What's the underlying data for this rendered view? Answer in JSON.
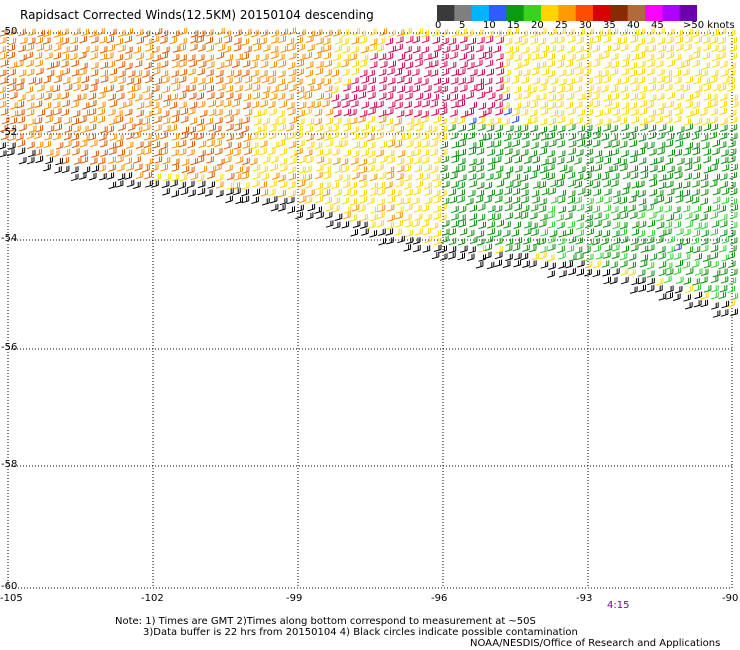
{
  "title": "Rapidsact Corrected Winds(12.5KM) 20150104 descending",
  "legend": {
    "ticks": [
      "0",
      "5",
      "10",
      "15",
      "20",
      "25",
      "30",
      "35",
      "40",
      "45",
      ">50 knots"
    ],
    "colors": [
      "#3a3a3a",
      "#7f7f7f",
      "#00b4ff",
      "#2f5cff",
      "#0b9b10",
      "#39d21d",
      "#ffd400",
      "#ff9b00",
      "#ff4d00",
      "#d80000",
      "#8a2a00",
      "#b06a3c",
      "#ff00ff",
      "#b000ff",
      "#6a00b0"
    ]
  },
  "map": {
    "lat_labels": [
      "-50",
      "-52",
      "-54",
      "-56",
      "-58",
      "-60"
    ],
    "lon_labels": [
      "-105",
      "-102",
      "-99",
      "-96",
      "-93",
      "-90"
    ],
    "time_label": "4:15",
    "swath_colors": {
      "black": "#000000",
      "yellow": "#ffd800",
      "orange": "#ff8f00",
      "redorange": "#e25a00",
      "crimson": "#d8004e",
      "green": "#0a8f0a",
      "lightgreen": "#2fd02f",
      "blue": "#1a3cff"
    }
  },
  "notes": {
    "line1": "Note: 1) Times are GMT 2)Times along bottom correspond to measurement at ~50S",
    "line2": "3)Data buffer is 22 hrs from 20150104 4) Black circles indicate possible contamination",
    "line3": "NOAA/NESDIS/Office of Research and Applications"
  }
}
